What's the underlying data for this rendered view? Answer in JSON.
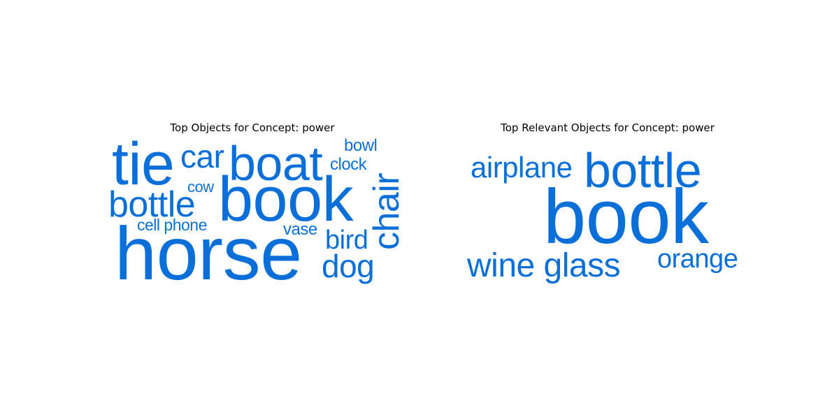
{
  "chart_data": [
    {
      "type": "wordcloud",
      "title": "Top Objects for Concept: power",
      "color": "#0a6fd8",
      "words": [
        "tie",
        "car",
        "boat",
        "bowl",
        "clock",
        "chair",
        "cow",
        "bottle",
        "book",
        "cell phone",
        "vase",
        "bird",
        "horse",
        "dog"
      ]
    },
    {
      "type": "wordcloud",
      "title": "Top Relevant Objects for Concept: power",
      "color": "#0a6fd8",
      "words": [
        "airplane",
        "bottle",
        "book",
        "wine glass",
        "orange"
      ]
    }
  ]
}
